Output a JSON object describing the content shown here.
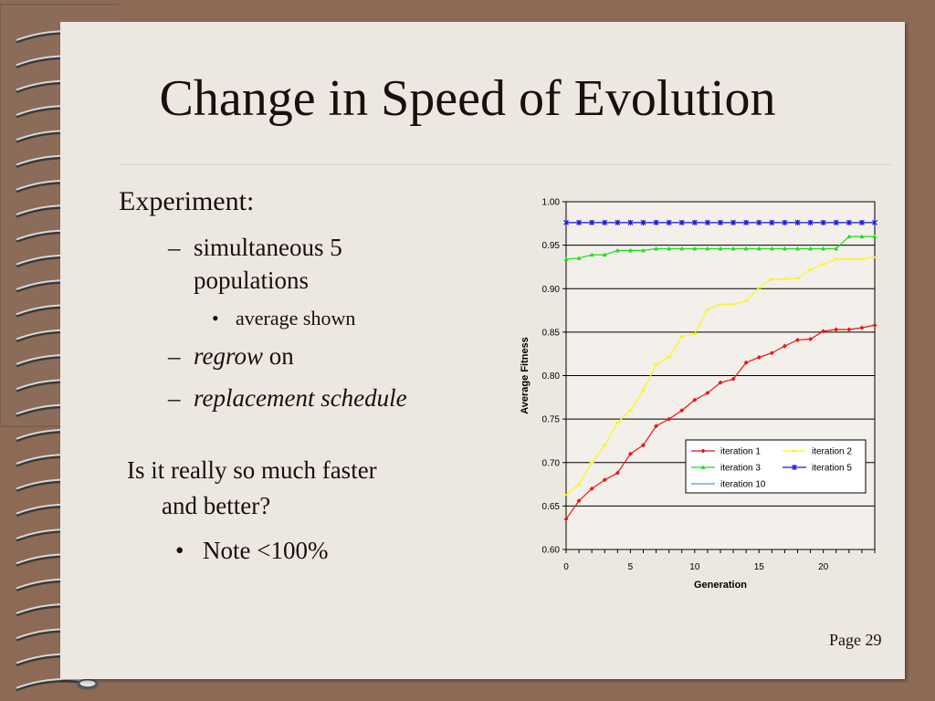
{
  "slide": {
    "title": "Change in Speed of Evolution",
    "page": "Page 29",
    "bullets": {
      "experiment": "Experiment:",
      "sub1_line1": "simultaneous 5",
      "sub1_line2": "populations",
      "sub1_1": "average shown",
      "sub2_em": "regrow",
      "sub2_rest": " on",
      "sub3_em": "replacement schedule",
      "dash": "–",
      "bullet": "•"
    },
    "question": {
      "line1": "Is it really so much faster",
      "line2": "and better?",
      "note": "Note <100%"
    }
  },
  "chart_data": {
    "type": "line",
    "title": "",
    "xlabel": "Generation",
    "ylabel": "Average Fitness",
    "xlim": [
      0,
      24
    ],
    "ylim": [
      0.6,
      1.0
    ],
    "x_ticks": [
      0,
      5,
      10,
      15,
      20
    ],
    "y_ticks": [
      "0.60",
      "0.65",
      "0.70",
      "0.75",
      "0.80",
      "0.85",
      "0.90",
      "0.95",
      "1.00"
    ],
    "grid": "horizontal",
    "legend_position": "lower-right",
    "x": [
      0,
      1,
      2,
      3,
      4,
      5,
      6,
      7,
      8,
      9,
      10,
      11,
      12,
      13,
      14,
      15,
      16,
      17,
      18,
      19,
      20,
      21,
      22,
      23,
      24
    ],
    "series": [
      {
        "name": "iteration 1",
        "color": "#e8161a",
        "marker": "diamond",
        "values": [
          0.635,
          0.656,
          0.67,
          0.68,
          0.688,
          0.71,
          0.72,
          0.742,
          0.75,
          0.76,
          0.772,
          0.78,
          0.792,
          0.796,
          0.815,
          0.821,
          0.826,
          0.834,
          0.841,
          0.842,
          0.851,
          0.853,
          0.853,
          0.855,
          0.858
        ]
      },
      {
        "name": "iteration 2",
        "color": "#f7f71a",
        "marker": "dash",
        "values": [
          0.663,
          0.675,
          0.7,
          0.72,
          0.746,
          0.76,
          0.783,
          0.813,
          0.821,
          0.845,
          0.848,
          0.876,
          0.882,
          0.882,
          0.886,
          0.901,
          0.911,
          0.911,
          0.912,
          0.922,
          0.928,
          0.934,
          0.934,
          0.934,
          0.936
        ]
      },
      {
        "name": "iteration 3",
        "color": "#1ae01a",
        "marker": "triangle",
        "values": [
          0.934,
          0.935,
          0.939,
          0.939,
          0.944,
          0.944,
          0.944,
          0.946,
          0.946,
          0.946,
          0.946,
          0.946,
          0.946,
          0.946,
          0.946,
          0.946,
          0.946,
          0.946,
          0.946,
          0.946,
          0.946,
          0.946,
          0.96,
          0.96,
          0.96
        ]
      },
      {
        "name": "iteration 5",
        "color": "#1a1ad8",
        "marker": "star",
        "values": [
          0.976,
          0.976,
          0.976,
          0.976,
          0.976,
          0.976,
          0.976,
          0.976,
          0.976,
          0.976,
          0.976,
          0.976,
          0.976,
          0.976,
          0.976,
          0.976,
          0.976,
          0.976,
          0.976,
          0.976,
          0.976,
          0.976,
          0.976,
          0.976,
          0.976
        ]
      },
      {
        "name": "iteration 10",
        "color": "#4a9ae8",
        "marker": "none",
        "values": [
          0.976,
          0.976,
          0.976,
          0.976,
          0.976,
          0.976,
          0.976,
          0.976,
          0.976,
          0.976,
          0.976,
          0.976,
          0.976,
          0.976,
          0.976,
          0.976,
          0.976,
          0.976,
          0.976,
          0.976,
          0.976,
          0.976,
          0.976,
          0.976,
          0.976
        ]
      }
    ]
  }
}
